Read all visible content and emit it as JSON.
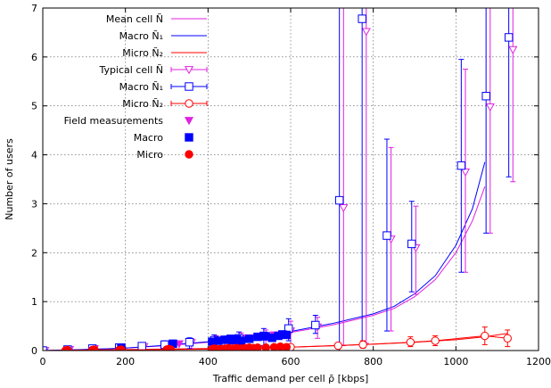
{
  "chart_data": {
    "type": "line",
    "xlabel": "Traffic demand per cell  ρ̄ [kbps]",
    "ylabel": "Number of users",
    "xlim": [
      0,
      1200
    ],
    "ylim": [
      0,
      7
    ],
    "xticks": [
      0,
      200,
      400,
      600,
      800,
      1000,
      1200
    ],
    "yticks": [
      0,
      1,
      2,
      3,
      4,
      5,
      6,
      7
    ],
    "grid": true,
    "legend_position": "top-left",
    "legend_entries": [
      "Mean cell  Ñ",
      "Macro  Ñ₁",
      "Micro  Ñ₂",
      "Typical cell  Ñ",
      "Macro  Ñ₁",
      "Micro  Ñ₂",
      "Field measurements",
      "Macro",
      "Micro"
    ],
    "series": [
      {
        "key": "mean_cell",
        "kind": "line",
        "color": "#e020e0",
        "x": [
          0,
          100,
          200,
          300,
          400,
          500,
          600,
          700,
          800,
          850,
          900,
          950,
          1000,
          1040,
          1070
        ],
        "y": [
          0,
          0.02,
          0.05,
          0.1,
          0.17,
          0.27,
          0.37,
          0.52,
          0.72,
          0.86,
          1.1,
          1.45,
          2.0,
          2.65,
          3.35
        ]
      },
      {
        "key": "mean_macro",
        "kind": "line",
        "color": "#0000ff",
        "x": [
          0,
          100,
          200,
          300,
          400,
          500,
          600,
          700,
          800,
          850,
          900,
          950,
          1000,
          1040,
          1070
        ],
        "y": [
          0,
          0.02,
          0.05,
          0.11,
          0.18,
          0.28,
          0.39,
          0.55,
          0.75,
          0.9,
          1.16,
          1.53,
          2.15,
          2.9,
          3.85
        ]
      },
      {
        "key": "mean_micro",
        "kind": "line",
        "color": "#ff0000",
        "x": [
          0,
          200,
          400,
          600,
          700,
          800,
          900,
          1000,
          1070,
          1125
        ],
        "y": [
          0,
          0.02,
          0.04,
          0.07,
          0.1,
          0.13,
          0.17,
          0.22,
          0.28,
          0.35
        ]
      },
      {
        "key": "typical_cell",
        "kind": "errorbar",
        "color": "#e020e0",
        "marker": "triangle-down-open",
        "points": [
          {
            "x": 5,
            "y": 0.0,
            "lo": 0.0,
            "hi": 0.0
          },
          {
            "x": 65,
            "y": 0.02,
            "lo": 0.0,
            "hi": 0.05
          },
          {
            "x": 125,
            "y": 0.04,
            "lo": 0.0,
            "hi": 0.08
          },
          {
            "x": 190,
            "y": 0.06,
            "lo": 0.0,
            "hi": 0.1
          },
          {
            "x": 245,
            "y": 0.08,
            "lo": 0.0,
            "hi": 0.13
          },
          {
            "x": 300,
            "y": 0.11,
            "lo": 0.02,
            "hi": 0.18
          },
          {
            "x": 360,
            "y": 0.16,
            "lo": 0.04,
            "hi": 0.24
          },
          {
            "x": 420,
            "y": 0.2,
            "lo": 0.05,
            "hi": 0.3
          },
          {
            "x": 480,
            "y": 0.24,
            "lo": 0.07,
            "hi": 0.36
          },
          {
            "x": 540,
            "y": 0.28,
            "lo": 0.08,
            "hi": 0.42
          },
          {
            "x": 600,
            "y": 0.4,
            "lo": 0.1,
            "hi": 0.6
          },
          {
            "x": 665,
            "y": 0.48,
            "lo": 0.25,
            "hi": 0.68
          },
          {
            "x": 728,
            "y": 2.92,
            "lo": 0.1,
            "hi": 7.0
          },
          {
            "x": 783,
            "y": 6.52,
            "lo": 0.15,
            "hi": 7.0
          },
          {
            "x": 843,
            "y": 2.28,
            "lo": 0.4,
            "hi": 4.15
          },
          {
            "x": 903,
            "y": 2.1,
            "lo": 1.15,
            "hi": 2.95
          },
          {
            "x": 1023,
            "y": 3.65,
            "lo": 1.6,
            "hi": 5.75
          },
          {
            "x": 1083,
            "y": 4.98,
            "lo": 2.4,
            "hi": 7.0
          },
          {
            "x": 1138,
            "y": 6.15,
            "lo": 3.45,
            "hi": 7.0
          }
        ]
      },
      {
        "key": "typical_macro",
        "kind": "errorbar",
        "color": "#0000ff",
        "marker": "square-open",
        "points": [
          {
            "x": 0,
            "y": 0.0,
            "lo": 0.0,
            "hi": 0.0
          },
          {
            "x": 60,
            "y": 0.02,
            "lo": 0.0,
            "hi": 0.05
          },
          {
            "x": 120,
            "y": 0.04,
            "lo": 0.0,
            "hi": 0.08
          },
          {
            "x": 185,
            "y": 0.06,
            "lo": 0.0,
            "hi": 0.1
          },
          {
            "x": 240,
            "y": 0.09,
            "lo": 0.0,
            "hi": 0.14
          },
          {
            "x": 295,
            "y": 0.12,
            "lo": 0.02,
            "hi": 0.2
          },
          {
            "x": 355,
            "y": 0.17,
            "lo": 0.04,
            "hi": 0.26
          },
          {
            "x": 415,
            "y": 0.21,
            "lo": 0.06,
            "hi": 0.32
          },
          {
            "x": 475,
            "y": 0.25,
            "lo": 0.08,
            "hi": 0.38
          },
          {
            "x": 535,
            "y": 0.3,
            "lo": 0.1,
            "hi": 0.45
          },
          {
            "x": 595,
            "y": 0.45,
            "lo": 0.2,
            "hi": 0.65
          },
          {
            "x": 660,
            "y": 0.52,
            "lo": 0.35,
            "hi": 0.72
          },
          {
            "x": 718,
            "y": 3.07,
            "lo": 0.0,
            "hi": 7.0
          },
          {
            "x": 773,
            "y": 6.78,
            "lo": 0.1,
            "hi": 7.0
          },
          {
            "x": 833,
            "y": 2.35,
            "lo": 0.4,
            "hi": 4.32
          },
          {
            "x": 893,
            "y": 2.18,
            "lo": 1.2,
            "hi": 3.05
          },
          {
            "x": 1013,
            "y": 3.78,
            "lo": 1.6,
            "hi": 5.95
          },
          {
            "x": 1073,
            "y": 5.2,
            "lo": 2.4,
            "hi": 7.0
          },
          {
            "x": 1128,
            "y": 6.4,
            "lo": 3.55,
            "hi": 7.0
          }
        ]
      },
      {
        "key": "typical_micro",
        "kind": "errorbar",
        "color": "#ff0000",
        "marker": "circle-open",
        "points": [
          {
            "x": 60,
            "y": 0.0,
            "lo": 0.0,
            "hi": 0.01
          },
          {
            "x": 120,
            "y": 0.01,
            "lo": 0.0,
            "hi": 0.02
          },
          {
            "x": 185,
            "y": 0.01,
            "lo": 0.0,
            "hi": 0.03
          },
          {
            "x": 300,
            "y": 0.02,
            "lo": 0.0,
            "hi": 0.04
          },
          {
            "x": 420,
            "y": 0.03,
            "lo": 0.0,
            "hi": 0.06
          },
          {
            "x": 600,
            "y": 0.07,
            "lo": 0.02,
            "hi": 0.12
          },
          {
            "x": 715,
            "y": 0.1,
            "lo": 0.04,
            "hi": 0.16
          },
          {
            "x": 775,
            "y": 0.12,
            "lo": 0.05,
            "hi": 0.2
          },
          {
            "x": 890,
            "y": 0.17,
            "lo": 0.08,
            "hi": 0.28
          },
          {
            "x": 950,
            "y": 0.2,
            "lo": 0.1,
            "hi": 0.3
          },
          {
            "x": 1070,
            "y": 0.3,
            "lo": 0.12,
            "hi": 0.48
          },
          {
            "x": 1125,
            "y": 0.25,
            "lo": 0.08,
            "hi": 0.42
          }
        ]
      },
      {
        "key": "field_cell",
        "kind": "scatter",
        "color": "#e020e0",
        "marker": "triangle-down-filled",
        "x": [
          330,
          440,
          460,
          495,
          520,
          560
        ],
        "y": [
          0.14,
          0.21,
          0.22,
          0.26,
          0.29,
          0.32
        ]
      },
      {
        "key": "field_macro",
        "kind": "scatter",
        "color": "#0000ff",
        "marker": "square-filled",
        "x": [
          190,
          315,
          410,
          425,
          440,
          450,
          455,
          460,
          470,
          480,
          500,
          520,
          540,
          555,
          570,
          580,
          590
        ],
        "y": [
          0.06,
          0.14,
          0.18,
          0.2,
          0.22,
          0.22,
          0.24,
          0.21,
          0.23,
          0.2,
          0.24,
          0.28,
          0.29,
          0.26,
          0.3,
          0.33,
          0.32
        ]
      },
      {
        "key": "field_micro",
        "kind": "scatter",
        "color": "#ff0000",
        "marker": "circle-filled",
        "x": [
          55,
          60,
          120,
          125,
          185,
          190,
          300,
          305,
          310,
          410,
          415,
          430,
          440,
          450,
          460,
          470,
          480,
          490,
          500,
          510,
          520,
          540,
          560,
          575,
          590
        ],
        "y": [
          0.0,
          0.01,
          0.01,
          0.02,
          0.01,
          0.02,
          0.02,
          0.03,
          0.02,
          0.03,
          0.04,
          0.03,
          0.04,
          0.05,
          0.04,
          0.05,
          0.04,
          0.05,
          0.06,
          0.05,
          0.06,
          0.06,
          0.07,
          0.08,
          0.07
        ]
      }
    ]
  }
}
